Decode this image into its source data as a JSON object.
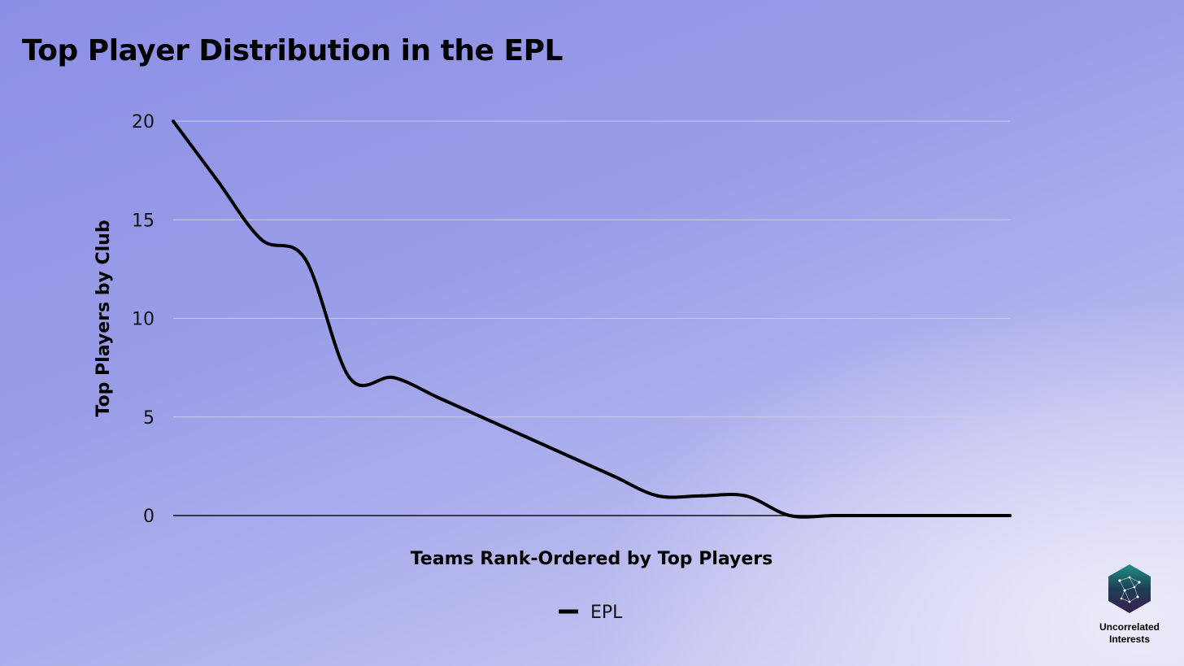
{
  "colors": {
    "line": "#000000",
    "grid": "#c9cbe6",
    "axis": "#111111"
  },
  "brand": {
    "logo_icon": "network-hexagon-icon",
    "line1": "Uncorrelated",
    "line2": "Interests"
  },
  "chart_data": {
    "type": "line",
    "title": "Top Player Distribution in the EPL",
    "xlabel": "Teams Rank-Ordered by Top Players",
    "ylabel": "Top Players by Club",
    "ylim": [
      0,
      20
    ],
    "yticks": [
      "0",
      "5",
      "10",
      "15",
      "20"
    ],
    "grid": true,
    "legend_position": "bottom-center",
    "x": [
      1,
      2,
      3,
      4,
      5,
      6,
      7,
      8,
      9,
      10,
      11,
      12,
      13,
      14,
      15,
      16,
      17,
      18,
      19,
      20
    ],
    "series": [
      {
        "name": "EPL",
        "values": [
          20,
          17,
          14,
          13,
          7,
          7,
          6,
          5,
          4,
          3,
          2,
          1,
          1,
          1,
          0,
          0,
          0,
          0,
          0,
          0
        ]
      }
    ]
  }
}
